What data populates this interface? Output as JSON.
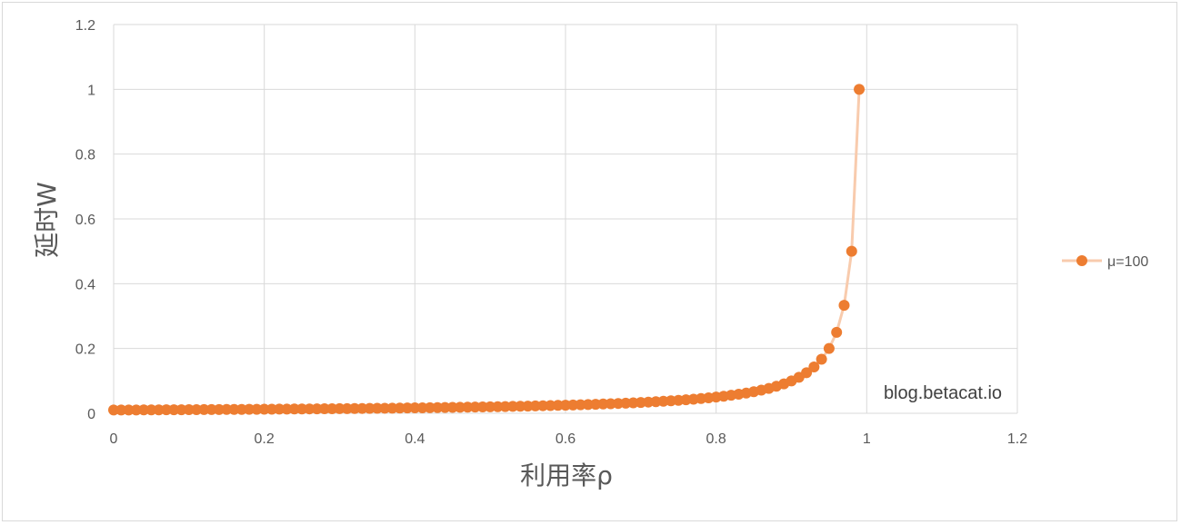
{
  "chart_data": {
    "type": "scatter",
    "xlabel": "利用率ρ",
    "ylabel": "延时W",
    "xlim": [
      0,
      1.2
    ],
    "ylim": [
      0,
      1.2
    ],
    "x_ticks": [
      "0",
      "0.2",
      "0.4",
      "0.6",
      "0.8",
      "1",
      "1.2"
    ],
    "y_ticks": [
      "0",
      "0.2",
      "0.4",
      "0.6",
      "0.8",
      "1",
      "1.2"
    ],
    "grid": true,
    "legend_position": "right",
    "annotation": "blog.betacat.io",
    "series": [
      {
        "name": "μ=100",
        "color": "#ED7D31",
        "line_color": "#F8CBAD",
        "formula": "W = 0.01 / (1 - ρ)",
        "x": [
          0,
          0.01,
          0.02,
          0.03,
          0.04,
          0.05,
          0.06,
          0.07,
          0.08,
          0.09,
          0.1,
          0.11,
          0.12,
          0.13,
          0.14,
          0.15,
          0.16,
          0.17,
          0.18,
          0.19,
          0.2,
          0.21,
          0.22,
          0.23,
          0.24,
          0.25,
          0.26,
          0.27,
          0.28,
          0.29,
          0.3,
          0.31,
          0.32,
          0.33,
          0.34,
          0.35,
          0.36,
          0.37,
          0.38,
          0.39,
          0.4,
          0.41,
          0.42,
          0.43,
          0.44,
          0.45,
          0.46,
          0.47,
          0.48,
          0.49,
          0.5,
          0.51,
          0.52,
          0.53,
          0.54,
          0.55,
          0.56,
          0.57,
          0.58,
          0.59,
          0.6,
          0.61,
          0.62,
          0.63,
          0.64,
          0.65,
          0.66,
          0.67,
          0.68,
          0.69,
          0.7,
          0.71,
          0.72,
          0.73,
          0.74,
          0.75,
          0.76,
          0.77,
          0.78,
          0.79,
          0.8,
          0.81,
          0.82,
          0.83,
          0.84,
          0.85,
          0.86,
          0.87,
          0.88,
          0.89,
          0.9,
          0.91,
          0.92,
          0.93,
          0.94,
          0.95,
          0.96,
          0.97,
          0.98,
          0.99
        ],
        "y": [
          0.01,
          0.0101,
          0.0102,
          0.0103,
          0.0104,
          0.0105,
          0.0106,
          0.0108,
          0.0109,
          0.011,
          0.0111,
          0.0112,
          0.0114,
          0.0115,
          0.0116,
          0.0118,
          0.0119,
          0.012,
          0.0122,
          0.0123,
          0.0125,
          0.0127,
          0.0128,
          0.013,
          0.0132,
          0.0133,
          0.0135,
          0.0137,
          0.0139,
          0.0141,
          0.0143,
          0.0145,
          0.0147,
          0.0149,
          0.0152,
          0.0154,
          0.0156,
          0.0159,
          0.0161,
          0.0164,
          0.0167,
          0.0169,
          0.0172,
          0.0175,
          0.0179,
          0.0182,
          0.0185,
          0.0189,
          0.0192,
          0.0196,
          0.02,
          0.0204,
          0.0208,
          0.0213,
          0.0217,
          0.0222,
          0.0227,
          0.0233,
          0.0238,
          0.0244,
          0.025,
          0.0256,
          0.0263,
          0.027,
          0.0278,
          0.0286,
          0.0294,
          0.0303,
          0.0313,
          0.0323,
          0.0333,
          0.0345,
          0.0357,
          0.037,
          0.0385,
          0.04,
          0.0417,
          0.0435,
          0.0455,
          0.0476,
          0.05,
          0.0526,
          0.0556,
          0.0588,
          0.0625,
          0.0667,
          0.0714,
          0.0769,
          0.0833,
          0.0909,
          0.1,
          0.1111,
          0.125,
          0.1429,
          0.1667,
          0.2,
          0.25,
          0.3333,
          0.5,
          1.0
        ]
      }
    ]
  }
}
